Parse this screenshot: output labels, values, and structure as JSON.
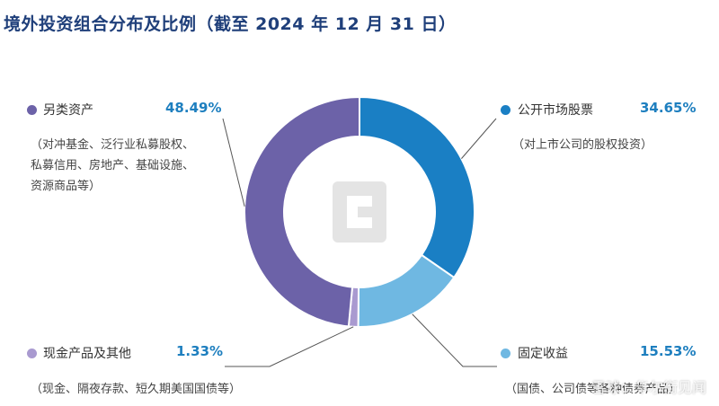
{
  "title": "境外投资组合分布及比例（截至 2024 年 12 月 31 日）",
  "chart_data": {
    "type": "pie",
    "donut": true,
    "slices": [
      {
        "label": "公开市场股票",
        "value": 34.65,
        "value_text": "34.65%",
        "desc": [
          "（对上市公司的股权投资）"
        ],
        "color": "#1a7fc4"
      },
      {
        "label": "固定收益",
        "value": 15.53,
        "value_text": "15.53%",
        "desc": [
          "（国债、公司债等各种债券产品）"
        ],
        "color": "#6fb8e2"
      },
      {
        "label": "现金产品及其他",
        "value": 1.33,
        "value_text": "1.33%",
        "desc": [
          "（现金、隔夜存款、短久期美国国债等）"
        ],
        "color": "#a99ad0"
      },
      {
        "label": "另类资产",
        "value": 48.49,
        "value_text": "48.49%",
        "desc": [
          "（对冲基金、泛行业私募股权、",
          "私募信用、房地产、基础设施、",
          "资源商品等）"
        ],
        "color": "#6c62a8"
      }
    ]
  },
  "watermark": "雪球：华尔街见闻"
}
